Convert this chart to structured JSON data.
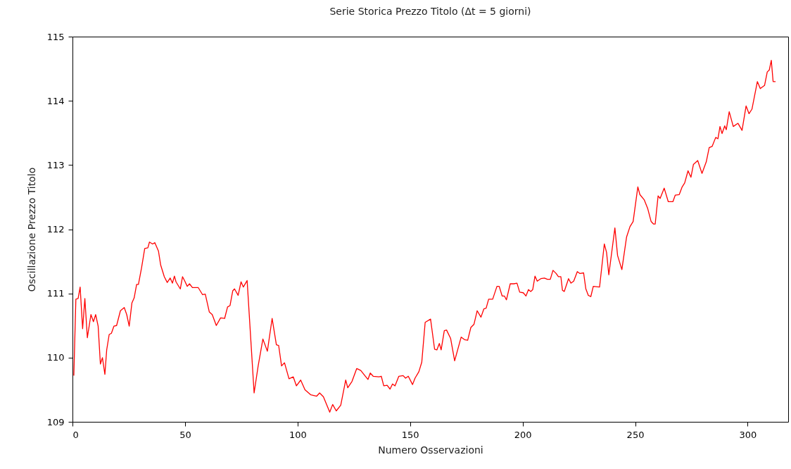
{
  "chart_data": {
    "type": "line",
    "title": "Serie Storica Prezzo Titolo (Δt = 5 giorni)",
    "xlabel": "Numero Osservazioni",
    "ylabel": "Oscillazione Prezzo Titolo",
    "xlim": [
      0,
      318
    ],
    "xticks": [
      0,
      50,
      100,
      150,
      200,
      250,
      300
    ],
    "ylim": [
      109,
      115
    ],
    "yticks": [
      109,
      110,
      111,
      112,
      113,
      114,
      115
    ],
    "x": [
      0.6,
      1.5,
      2.5,
      3.4,
      4.5,
      5.5,
      6.6,
      8.2,
      9.3,
      10.3,
      11.4,
      12.4,
      13.3,
      14.4,
      15.2,
      16.3,
      17.3,
      18.4,
      19.6,
      21.3,
      23,
      24.1,
      25.2,
      26.4,
      27.4,
      28.5,
      29.3,
      30.7,
      32.1,
      33.5,
      34.2,
      35.6,
      36.6,
      38.2,
      39.2,
      40.8,
      42.1,
      43.4,
      44.4,
      45.3,
      46,
      47.9,
      48.9,
      49.8,
      51,
      52,
      53.3,
      55.9,
      57.8,
      59,
      60.8,
      62.1,
      63.9,
      65.8,
      67.6,
      68.9,
      70,
      71.2,
      72,
      73.6,
      74.9,
      75.9,
      77.6,
      80.7,
      82.5,
      84.6,
      86.6,
      88.7,
      90.6,
      91.6,
      92.9,
      94.2,
      96.2,
      98.1,
      99.5,
      101.4,
      103.3,
      105.9,
      108.5,
      109.8,
      111.5,
      114.3,
      115.6,
      117.2,
      119.2,
      121.4,
      122.3,
      124.2,
      126.3,
      128.1,
      129.9,
      131.3,
      132.3,
      133.6,
      136.2,
      137.2,
      138.3,
      139.8,
      141.1,
      142.2,
      143.3,
      145,
      146.9,
      148,
      149.2,
      151.1,
      152.2,
      153.9,
      155.2,
      156.7,
      159.1,
      160.9,
      161.9,
      163,
      163.8,
      165.2,
      166.2,
      168,
      169.8,
      172.7,
      174.2,
      175.6,
      177,
      178.4,
      179.8,
      181.5,
      182.8,
      183.8,
      184.9,
      186.7,
      188.6,
      189.6,
      190.9,
      191.9,
      192.8,
      194.5,
      196.1,
      197.5,
      198.7,
      200.3,
      201.5,
      202.6,
      203.6,
      204.5,
      205.5,
      206.5,
      208.1,
      209.7,
      211,
      212.3,
      213.5,
      214.9,
      215.9,
      217,
      217.7,
      218.5,
      220.4,
      221.5,
      222.7,
      224.3,
      225.5,
      227.1,
      228.1,
      229.2,
      230.3,
      231.4,
      234.2,
      236.3,
      237.3,
      238.3,
      241,
      242.2,
      244.1,
      246.2,
      247.7,
      249.1,
      251.2,
      252.1,
      254,
      255.6,
      257.1,
      258.2,
      258.9,
      260.2,
      261.1,
      262.9,
      264.7,
      266.8,
      267.8,
      269.6,
      270.9,
      272,
      273.5,
      274.8,
      275.9,
      277.8,
      279.7,
      281.6,
      282.9,
      284.2,
      285.8,
      286.8,
      287.7,
      288.6,
      289.8,
      290.5,
      291.8,
      293.6,
      295.7,
      297.5,
      299.3,
      300.6,
      301.9,
      304.3,
      305.6,
      307.5,
      308.7,
      309.6,
      310.5,
      311.3,
      312.4
    ],
    "series": [
      {
        "color": "#ff0000",
        "values": [
          109.72,
          110.91,
          110.92,
          111.1,
          110.45,
          110.92,
          110.31,
          110.67,
          110.56,
          110.67,
          110.49,
          109.9,
          110.0,
          109.74,
          110.12,
          110.36,
          110.38,
          110.49,
          110.5,
          110.73,
          110.78,
          110.67,
          110.49,
          110.85,
          110.93,
          111.14,
          111.14,
          111.4,
          111.7,
          111.71,
          111.8,
          111.77,
          111.79,
          111.66,
          111.44,
          111.26,
          111.17,
          111.24,
          111.16,
          111.27,
          111.18,
          111.07,
          111.26,
          111.2,
          111.11,
          111.15,
          111.09,
          111.09,
          110.98,
          110.99,
          110.71,
          110.67,
          110.5,
          110.62,
          110.61,
          110.79,
          110.81,
          111.04,
          111.07,
          110.97,
          111.18,
          111.1,
          111.2,
          109.45,
          109.87,
          110.29,
          110.1,
          110.61,
          110.2,
          110.19,
          109.87,
          109.92,
          109.67,
          109.7,
          109.56,
          109.65,
          109.5,
          109.42,
          109.4,
          109.45,
          109.39,
          109.15,
          109.27,
          109.17,
          109.26,
          109.65,
          109.53,
          109.63,
          109.83,
          109.8,
          109.72,
          109.66,
          109.76,
          109.71,
          109.7,
          109.71,
          109.56,
          109.57,
          109.51,
          109.59,
          109.56,
          109.71,
          109.72,
          109.68,
          109.71,
          109.58,
          109.68,
          109.78,
          109.93,
          110.55,
          110.6,
          110.13,
          110.12,
          110.22,
          110.12,
          110.42,
          110.43,
          110.3,
          109.95,
          110.32,
          110.28,
          110.27,
          110.47,
          110.52,
          110.73,
          110.63,
          110.76,
          110.77,
          110.91,
          110.91,
          111.11,
          111.11,
          110.96,
          110.96,
          110.9,
          111.15,
          111.15,
          111.16,
          111.02,
          111.01,
          110.96,
          111.06,
          111.03,
          111.06,
          111.27,
          111.19,
          111.23,
          111.24,
          111.22,
          111.22,
          111.36,
          111.31,
          111.26,
          111.26,
          111.05,
          111.03,
          111.23,
          111.16,
          111.19,
          111.34,
          111.31,
          111.32,
          111.07,
          110.97,
          110.95,
          111.11,
          111.1,
          111.77,
          111.64,
          111.29,
          112.02,
          111.59,
          111.37,
          111.88,
          112.04,
          112.12,
          112.66,
          112.54,
          112.46,
          112.32,
          112.12,
          112.08,
          112.08,
          112.52,
          112.48,
          112.64,
          112.43,
          112.43,
          112.53,
          112.54,
          112.66,
          112.72,
          112.91,
          112.81,
          113.01,
          113.07,
          112.87,
          113.05,
          113.27,
          113.29,
          113.43,
          113.41,
          113.6,
          113.49,
          113.61,
          113.55,
          113.83,
          113.6,
          113.65,
          113.54,
          113.92,
          113.8,
          113.87,
          114.3,
          114.19,
          114.24,
          114.45,
          114.48,
          114.63,
          114.3,
          114.3
        ]
      }
    ]
  }
}
